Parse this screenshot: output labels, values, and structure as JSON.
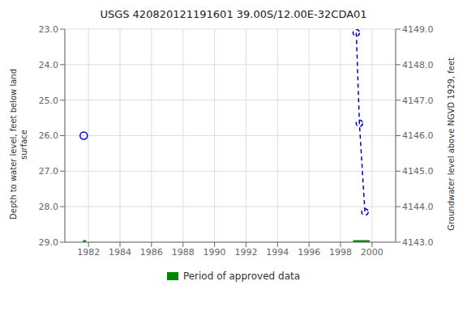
{
  "chart_data": {
    "type": "line",
    "title": "USGS 420820121191601 39.00S/12.00E-32CDA01",
    "y_label": "Depth to water level, feet below land\nsurface",
    "y2_label": "Groundwater level above NGVD 1929, feet",
    "xlim": [
      1980.5,
      2001.5
    ],
    "xticks": [
      1982,
      1984,
      1986,
      1988,
      1990,
      1992,
      1994,
      1996,
      1998,
      2000
    ],
    "ylim": [
      29.0,
      23.0
    ],
    "yticks": [
      {
        "value": 23.0,
        "label": "23.0"
      },
      {
        "value": 24.0,
        "label": "24.0"
      },
      {
        "value": 25.0,
        "label": "25.0"
      },
      {
        "value": 26.0,
        "label": "26.0"
      },
      {
        "value": 27.0,
        "label": "27.0"
      },
      {
        "value": 28.0,
        "label": "28.0"
      },
      {
        "value": 29.0,
        "label": "29.0"
      }
    ],
    "y2lim": [
      4143.0,
      4149.0
    ],
    "y2ticks": [
      {
        "value": 4143.0,
        "label": "4143.0"
      },
      {
        "value": 4144.0,
        "label": "4144.0"
      },
      {
        "value": 4145.0,
        "label": "4145.0"
      },
      {
        "value": 4146.0,
        "label": "4146.0"
      },
      {
        "value": 4147.0,
        "label": "4147.0"
      },
      {
        "value": 4148.0,
        "label": "4148.0"
      },
      {
        "value": 4149.0,
        "label": "4149.0"
      }
    ],
    "grid": true,
    "series": [
      {
        "type": "scatter",
        "marker": "circle",
        "color": "#0000cc",
        "x": [
          1981.7
        ],
        "values": [
          26.0
        ]
      },
      {
        "type": "line",
        "line_style": "dashed",
        "marker": "circle",
        "color": "#0000cc",
        "x": [
          1999.0,
          1999.2,
          1999.55
        ],
        "values": [
          23.1,
          25.65,
          28.15
        ]
      },
      {
        "name": "Period of approved data",
        "type": "segments",
        "line_style": "solid",
        "color": "#008800",
        "x_start": [
          1981.65,
          1998.8
        ],
        "x_end": [
          1981.85,
          1999.85
        ],
        "values": [
          29.0,
          29.0
        ]
      }
    ]
  }
}
